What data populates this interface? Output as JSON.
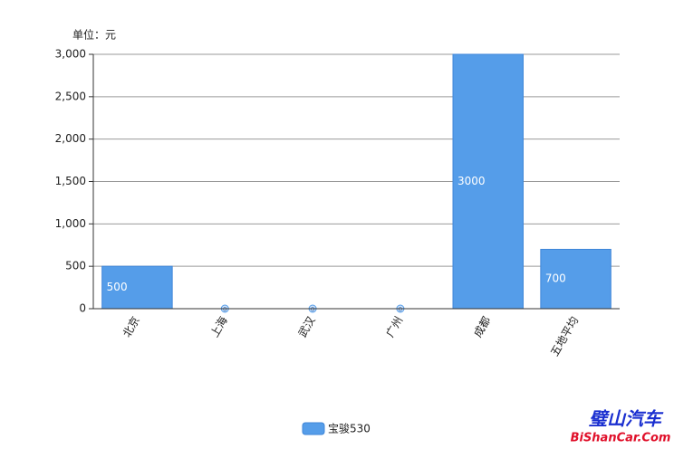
{
  "chart_data": {
    "type": "bar",
    "y_label": "单位：元",
    "categories": [
      "北京",
      "上海",
      "武汉",
      "广州",
      "成都",
      "五地平均"
    ],
    "series": [
      {
        "name": "宝骏530",
        "color": "#559de9",
        "values": [
          500,
          0,
          0,
          0,
          3000,
          700
        ]
      }
    ],
    "ylim": [
      0,
      3000
    ],
    "yticks": [
      0,
      500,
      {
        "value": 1000,
        "label": "1,000"
      },
      {
        "value": 1500,
        "label": "1,500"
      },
      {
        "value": 2000,
        "label": "2,000"
      },
      {
        "value": 2500,
        "label": "2,500"
      },
      {
        "value": 3000,
        "label": "3,000"
      }
    ],
    "grid": true,
    "legend": "bottom",
    "watermark": {
      "title": "璧山汽车",
      "site": "BiShanCar.Com"
    }
  }
}
